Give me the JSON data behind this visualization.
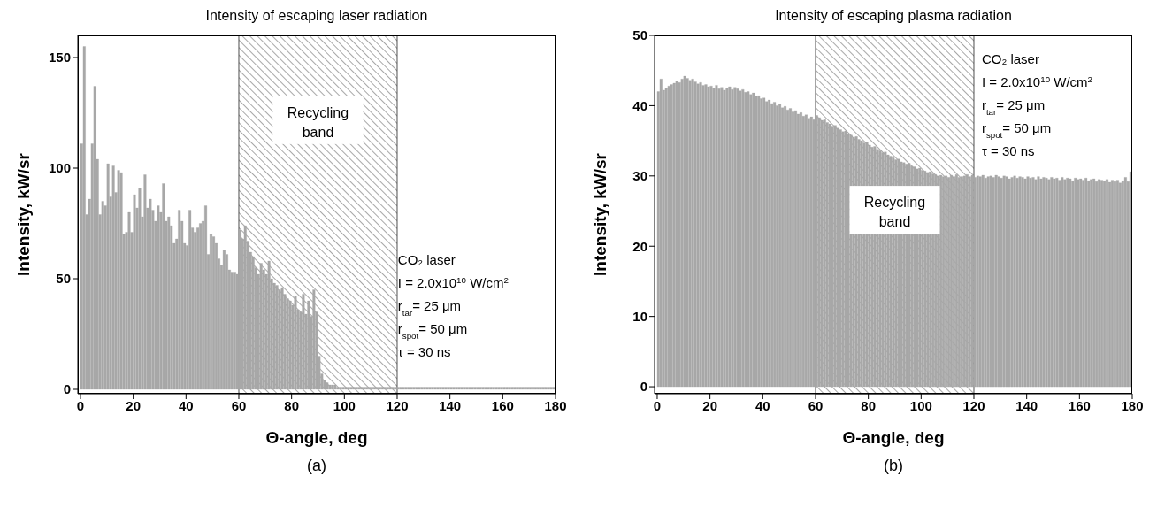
{
  "chart_data": [
    {
      "type": "histogram",
      "title": "Intensity of escaping laser radiation",
      "xlabel": "Θ-angle, deg",
      "ylabel": "Intensity, kW/sr",
      "bins": [
        0,
        1,
        2,
        3,
        4,
        5,
        6,
        7,
        8,
        9,
        10,
        11,
        12,
        13,
        14,
        15,
        16,
        17,
        18,
        19,
        20,
        21,
        22,
        23,
        24,
        25,
        26,
        27,
        28,
        29,
        30,
        31,
        32,
        33,
        34,
        35,
        36,
        37,
        38,
        39,
        40,
        41,
        42,
        43,
        44,
        45,
        46,
        47,
        48,
        49,
        50,
        51,
        52,
        53,
        54,
        55,
        56,
        57,
        58,
        59,
        60,
        61,
        62,
        63,
        64,
        65,
        66,
        67,
        68,
        69,
        70,
        71,
        72,
        73,
        74,
        75,
        76,
        77,
        78,
        79,
        80,
        81,
        82,
        83,
        84,
        85,
        86,
        87,
        88,
        89,
        90,
        91,
        92,
        93,
        94,
        95,
        96,
        97,
        98,
        99,
        100,
        101,
        102,
        103,
        104,
        105,
        106,
        107,
        108,
        109,
        110,
        111,
        112,
        113,
        114,
        115,
        116,
        117,
        118,
        119,
        120,
        121,
        122,
        123,
        124,
        125,
        126,
        127,
        128,
        129,
        130,
        131,
        132,
        133,
        134,
        135,
        136,
        137,
        138,
        139,
        140,
        141,
        142,
        143,
        144,
        145,
        146,
        147,
        148,
        149,
        150,
        151,
        152,
        153,
        154,
        155,
        156,
        157,
        158,
        159,
        160,
        161,
        162,
        163,
        164,
        165,
        166,
        167,
        168,
        169,
        170,
        171,
        172,
        173,
        174,
        175,
        176,
        177,
        178,
        179,
        180
      ],
      "values": [
        111,
        155,
        79,
        86,
        111,
        137,
        104,
        79,
        85,
        83,
        102,
        87,
        101,
        89,
        99,
        98,
        70,
        71,
        80,
        71,
        88,
        82,
        91,
        78,
        97,
        82,
        86,
        81,
        76,
        83,
        80,
        93,
        76,
        78,
        74,
        66,
        68,
        81,
        76,
        66,
        65,
        81,
        73,
        71,
        73,
        75,
        76,
        83,
        61,
        70,
        69,
        66,
        59,
        56,
        63,
        61,
        54,
        53,
        53,
        52,
        72,
        68,
        74,
        67,
        62,
        60,
        55,
        52,
        57,
        54,
        52,
        58,
        50,
        48,
        47,
        45,
        46,
        43,
        41,
        40,
        38,
        42,
        36,
        35,
        43,
        34,
        40,
        33,
        45,
        35,
        15,
        7,
        4,
        3,
        2,
        2,
        2,
        1,
        1,
        1,
        1,
        1,
        1,
        1,
        1,
        1,
        1,
        1,
        1,
        1,
        1,
        1,
        1,
        1,
        1,
        1,
        1,
        1,
        1,
        1,
        1,
        1,
        1,
        1,
        1,
        1,
        1,
        1,
        1,
        1,
        1,
        1,
        1,
        1,
        1,
        1,
        1,
        1,
        1,
        1,
        1,
        1,
        1,
        1,
        1,
        1,
        1,
        1,
        1,
        1,
        1,
        1,
        1,
        1,
        1,
        1,
        1,
        1,
        1,
        1,
        1,
        1,
        1,
        1,
        1,
        1,
        1,
        1,
        1,
        1,
        1,
        1,
        1,
        1,
        1,
        1,
        1,
        1,
        1,
        1
      ],
      "color": "#a8a8a8",
      "xlim": [
        -1,
        180
      ],
      "xticks": [
        0,
        20,
        40,
        60,
        80,
        100,
        120,
        140,
        160,
        180
      ],
      "ylim": [
        -2,
        160
      ],
      "yticks": [
        0,
        50,
        100,
        150
      ],
      "bands": [
        {
          "axis": "x",
          "from": 60,
          "to": 120,
          "label": "Recycling band"
        }
      ],
      "annotations": [
        "CO₂ laser",
        "I = 2.0x10$^{10}$ W/cm$^{2}$",
        "r$_{tar}$= 25 μm",
        "r$_{spot}$= 50 μm",
        "τ = 30 ns",
        "(a)"
      ]
    },
    {
      "type": "histogram",
      "title": "Intensity of escaping plasma radiation",
      "xlabel": "Θ-angle, deg",
      "ylabel": "Intensity, kW/sr",
      "bins": [
        0,
        1,
        2,
        3,
        4,
        5,
        6,
        7,
        8,
        9,
        10,
        11,
        12,
        13,
        14,
        15,
        16,
        17,
        18,
        19,
        20,
        21,
        22,
        23,
        24,
        25,
        26,
        27,
        28,
        29,
        30,
        31,
        32,
        33,
        34,
        35,
        36,
        37,
        38,
        39,
        40,
        41,
        42,
        43,
        44,
        45,
        46,
        47,
        48,
        49,
        50,
        51,
        52,
        53,
        54,
        55,
        56,
        57,
        58,
        59,
        60,
        61,
        62,
        63,
        64,
        65,
        66,
        67,
        68,
        69,
        70,
        71,
        72,
        73,
        74,
        75,
        76,
        77,
        78,
        79,
        80,
        81,
        82,
        83,
        84,
        85,
        86,
        87,
        88,
        89,
        90,
        91,
        92,
        93,
        94,
        95,
        96,
        97,
        98,
        99,
        100,
        101,
        102,
        103,
        104,
        105,
        106,
        107,
        108,
        109,
        110,
        111,
        112,
        113,
        114,
        115,
        116,
        117,
        118,
        119,
        120,
        121,
        122,
        123,
        124,
        125,
        126,
        127,
        128,
        129,
        130,
        131,
        132,
        133,
        134,
        135,
        136,
        137,
        138,
        139,
        140,
        141,
        142,
        143,
        144,
        145,
        146,
        147,
        148,
        149,
        150,
        151,
        152,
        153,
        154,
        155,
        156,
        157,
        158,
        159,
        160,
        161,
        162,
        163,
        164,
        165,
        166,
        167,
        168,
        169,
        170,
        171,
        172,
        173,
        174,
        175,
        176,
        177,
        178,
        179,
        180
      ],
      "values": [
        42.0,
        43.8,
        42.2,
        42.5,
        42.8,
        43.0,
        43.2,
        43.5,
        43.3,
        43.8,
        44.2,
        43.9,
        43.6,
        43.8,
        43.4,
        43.1,
        43.3,
        42.9,
        43.0,
        42.7,
        42.8,
        42.5,
        42.9,
        42.4,
        42.6,
        42.2,
        42.5,
        42.7,
        42.3,
        42.6,
        42.4,
        42.1,
        42.3,
        41.9,
        42.0,
        41.6,
        41.8,
        41.3,
        41.4,
        41.0,
        41.1,
        40.6,
        40.8,
        40.3,
        40.5,
        40.0,
        40.2,
        39.7,
        39.9,
        39.4,
        39.6,
        39.1,
        39.3,
        38.8,
        39.0,
        38.5,
        38.7,
        38.2,
        38.4,
        38.0,
        38.6,
        38.3,
        37.9,
        38.0,
        37.6,
        37.4,
        37.1,
        37.2,
        36.8,
        36.6,
        36.3,
        36.4,
        36.0,
        35.8,
        35.5,
        35.6,
        35.2,
        35.0,
        34.7,
        34.8,
        34.4,
        34.1,
        34.2,
        33.8,
        33.6,
        33.3,
        33.4,
        33.0,
        32.8,
        32.6,
        32.3,
        32.4,
        32.0,
        31.9,
        31.7,
        31.8,
        31.4,
        31.3,
        31.0,
        31.1,
        30.8,
        30.7,
        30.5,
        30.6,
        30.3,
        30.2,
        30.0,
        30.1,
        29.9,
        30.0,
        29.8,
        30.1,
        29.9,
        30.2,
        29.8,
        29.9,
        30.0,
        30.2,
        29.9,
        30.1,
        29.8,
        30.0,
        29.9,
        30.1,
        29.7,
        29.9,
        30.0,
        29.8,
        30.1,
        29.9,
        29.7,
        30.0,
        29.9,
        29.6,
        29.8,
        30.0,
        29.7,
        29.9,
        29.8,
        29.6,
        29.9,
        29.7,
        29.8,
        29.5,
        29.9,
        29.6,
        29.8,
        29.7,
        29.5,
        29.8,
        29.6,
        29.7,
        29.4,
        29.8,
        29.5,
        29.7,
        29.6,
        29.3,
        29.7,
        29.5,
        29.6,
        29.4,
        29.7,
        29.3,
        29.5,
        29.6,
        29.2,
        29.5,
        29.4,
        29.3,
        29.5,
        29.1,
        29.4,
        29.2,
        29.4,
        29.0,
        29.3,
        29.8,
        29.2,
        30.6
      ],
      "color": "#a8a8a8",
      "xlim": [
        -1,
        180
      ],
      "xticks": [
        0,
        20,
        40,
        60,
        80,
        100,
        120,
        140,
        160,
        180
      ],
      "ylim": [
        -1,
        50
      ],
      "yticks": [
        0,
        10,
        20,
        30,
        40,
        50
      ],
      "bands": [
        {
          "axis": "x",
          "from": 60,
          "to": 120,
          "label": "Recycling band"
        }
      ],
      "annotations": [
        "CO₂ laser",
        "I = 2.0x10$^{10}$ W/cm$^{2}$",
        "r$_{tar}$= 25 μm",
        "r$_{spot}$= 50 μm",
        "τ = 30 ns",
        "(b)"
      ]
    }
  ]
}
